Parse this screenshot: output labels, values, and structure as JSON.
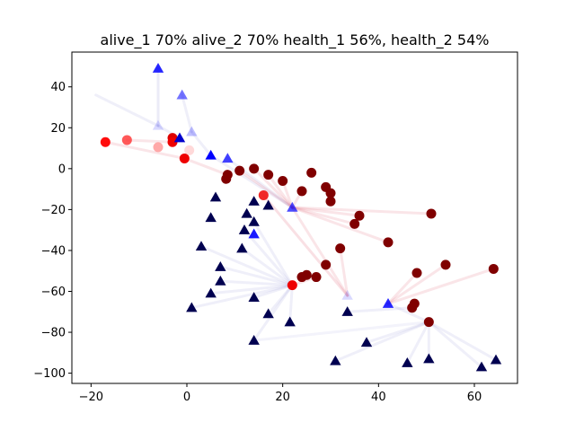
{
  "chart_data": {
    "type": "scatter",
    "title": "alive_1 70% alive_2 70% health_1 56%, health_2 54%",
    "xlabel": "",
    "ylabel": "",
    "xlim": [
      -24,
      69
    ],
    "ylim": [
      -105,
      57
    ],
    "xticks": [
      -20,
      0,
      20,
      40,
      60
    ],
    "yticks": [
      -100,
      -80,
      -60,
      -40,
      -20,
      0,
      20,
      40
    ],
    "grid": false,
    "colors": {
      "team1_alive": "#800000",
      "team1_active": "#ff0000",
      "team2_alive": "#000050",
      "team2_active": "#0000ff",
      "link_team1": "#e06070",
      "link_team2": "#8080d0"
    },
    "series": [
      {
        "marker": "circle",
        "points": [
          {
            "x": 11,
            "y": -1,
            "color": "#800000",
            "alpha": 1
          },
          {
            "x": 14,
            "y": 0,
            "color": "#800000",
            "alpha": 1
          },
          {
            "x": 8.5,
            "y": -3,
            "color": "#800000",
            "alpha": 1
          },
          {
            "x": 8.2,
            "y": -5,
            "color": "#800000",
            "alpha": 1
          },
          {
            "x": 17,
            "y": -3,
            "color": "#800000",
            "alpha": 1
          },
          {
            "x": 20,
            "y": -6,
            "color": "#800000",
            "alpha": 1
          },
          {
            "x": 26,
            "y": -2,
            "color": "#800000",
            "alpha": 1
          },
          {
            "x": 24,
            "y": -11,
            "color": "#800000",
            "alpha": 1
          },
          {
            "x": 29,
            "y": -9,
            "color": "#800000",
            "alpha": 1
          },
          {
            "x": 30,
            "y": -12,
            "color": "#800000",
            "alpha": 1
          },
          {
            "x": 30,
            "y": -16,
            "color": "#800000",
            "alpha": 1
          },
          {
            "x": 36,
            "y": -23,
            "color": "#800000",
            "alpha": 1
          },
          {
            "x": 35,
            "y": -27,
            "color": "#800000",
            "alpha": 1
          },
          {
            "x": 51,
            "y": -22,
            "color": "#800000",
            "alpha": 1
          },
          {
            "x": 42,
            "y": -36,
            "color": "#800000",
            "alpha": 1
          },
          {
            "x": 32,
            "y": -39,
            "color": "#800000",
            "alpha": 1
          },
          {
            "x": 54,
            "y": -47,
            "color": "#800000",
            "alpha": 1
          },
          {
            "x": 29,
            "y": -47,
            "color": "#800000",
            "alpha": 1
          },
          {
            "x": 48,
            "y": -51,
            "color": "#800000",
            "alpha": 1
          },
          {
            "x": 64,
            "y": -49,
            "color": "#800000",
            "alpha": 1
          },
          {
            "x": 27,
            "y": -53,
            "color": "#800000",
            "alpha": 1
          },
          {
            "x": 25,
            "y": -52,
            "color": "#800000",
            "alpha": 1
          },
          {
            "x": 24,
            "y": -53,
            "color": "#800000",
            "alpha": 1
          },
          {
            "x": 47.5,
            "y": -66,
            "color": "#800000",
            "alpha": 1
          },
          {
            "x": 47,
            "y": -68,
            "color": "#800000",
            "alpha": 1
          },
          {
            "x": 50.5,
            "y": -75,
            "color": "#800000",
            "alpha": 1
          },
          {
            "x": 22,
            "y": -57,
            "color": "#ee0000",
            "alpha": 1
          },
          {
            "x": 16,
            "y": -13,
            "color": "#ee1111",
            "alpha": 0.9
          },
          {
            "x": -0.5,
            "y": 5,
            "color": "#ee0000",
            "alpha": 1
          },
          {
            "x": -3,
            "y": 15,
            "color": "#dd0000",
            "alpha": 1
          },
          {
            "x": -3,
            "y": 13,
            "color": "#ee0000",
            "alpha": 1
          },
          {
            "x": -17,
            "y": 13,
            "color": "#ff0000",
            "alpha": 0.95
          },
          {
            "x": -12.5,
            "y": 14,
            "color": "#ff3030",
            "alpha": 0.8
          },
          {
            "x": -6,
            "y": 10.5,
            "color": "#ff6060",
            "alpha": 0.55
          },
          {
            "x": 0.5,
            "y": 9,
            "color": "#ff8080",
            "alpha": 0.3
          }
        ]
      },
      {
        "marker": "triangle",
        "points": [
          {
            "x": -6,
            "y": 49,
            "color": "#0000ff",
            "alpha": 0.85
          },
          {
            "x": -1,
            "y": 36,
            "color": "#0000ff",
            "alpha": 0.55
          },
          {
            "x": -6,
            "y": 21,
            "color": "#0000ff",
            "alpha": 0.15
          },
          {
            "x": 1,
            "y": 18,
            "color": "#0000ff",
            "alpha": 0.25
          },
          {
            "x": -1.5,
            "y": 15,
            "color": "#0000cc",
            "alpha": 1
          },
          {
            "x": 5,
            "y": 6.5,
            "color": "#0000ff",
            "alpha": 1
          },
          {
            "x": 8.5,
            "y": 5,
            "color": "#0000ff",
            "alpha": 0.75
          },
          {
            "x": 22,
            "y": -19,
            "color": "#0000ff",
            "alpha": 0.7
          },
          {
            "x": 14,
            "y": -32,
            "color": "#0000ff",
            "alpha": 0.9
          },
          {
            "x": 33.5,
            "y": -62,
            "color": "#0000ff",
            "alpha": 0.15
          },
          {
            "x": 42,
            "y": -66,
            "color": "#0000ff",
            "alpha": 0.85
          },
          {
            "x": 6,
            "y": -14,
            "color": "#000050",
            "alpha": 1
          },
          {
            "x": 14,
            "y": -16,
            "color": "#000050",
            "alpha": 1
          },
          {
            "x": 17,
            "y": -18,
            "color": "#000050",
            "alpha": 1
          },
          {
            "x": 12.5,
            "y": -22,
            "color": "#000050",
            "alpha": 1
          },
          {
            "x": 5,
            "y": -24,
            "color": "#000050",
            "alpha": 1
          },
          {
            "x": 14,
            "y": -26,
            "color": "#000050",
            "alpha": 1
          },
          {
            "x": 12,
            "y": -30,
            "color": "#000050",
            "alpha": 1
          },
          {
            "x": 3,
            "y": -38,
            "color": "#000050",
            "alpha": 1
          },
          {
            "x": 11.5,
            "y": -39,
            "color": "#000050",
            "alpha": 1
          },
          {
            "x": 7,
            "y": -48,
            "color": "#000050",
            "alpha": 1
          },
          {
            "x": 7,
            "y": -55,
            "color": "#000050",
            "alpha": 1
          },
          {
            "x": 5,
            "y": -61,
            "color": "#000050",
            "alpha": 1
          },
          {
            "x": 14,
            "y": -63,
            "color": "#000050",
            "alpha": 1
          },
          {
            "x": 1,
            "y": -68,
            "color": "#000050",
            "alpha": 1
          },
          {
            "x": 17,
            "y": -71,
            "color": "#000050",
            "alpha": 1
          },
          {
            "x": 21.5,
            "y": -75,
            "color": "#000050",
            "alpha": 1
          },
          {
            "x": 33.5,
            "y": -70,
            "color": "#000050",
            "alpha": 1
          },
          {
            "x": 14,
            "y": -84,
            "color": "#000050",
            "alpha": 1
          },
          {
            "x": 37.5,
            "y": -85,
            "color": "#000050",
            "alpha": 1
          },
          {
            "x": 31,
            "y": -94,
            "color": "#000050",
            "alpha": 1
          },
          {
            "x": 46,
            "y": -95,
            "color": "#000050",
            "alpha": 1
          },
          {
            "x": 50.5,
            "y": -93,
            "color": "#000050",
            "alpha": 1
          },
          {
            "x": 61.5,
            "y": -97,
            "color": "#000050",
            "alpha": 1
          },
          {
            "x": 64.5,
            "y": -93.5,
            "color": "#000050",
            "alpha": 1
          }
        ]
      }
    ],
    "links": [
      {
        "from": [
          -19,
          36
        ],
        "to": [
          -6,
          21
        ],
        "team": 2,
        "alpha": 0.08
      },
      {
        "from": [
          -6,
          49
        ],
        "to": [
          -6,
          21
        ],
        "team": 2,
        "alpha": 0.1
      },
      {
        "from": [
          -6,
          21
        ],
        "to": [
          -1.5,
          15
        ],
        "team": 2,
        "alpha": 0.08
      },
      {
        "from": [
          -1,
          36
        ],
        "to": [
          1,
          18
        ],
        "team": 2,
        "alpha": 0.08
      },
      {
        "from": [
          1,
          18
        ],
        "to": [
          5,
          6.5
        ],
        "team": 2,
        "alpha": 0.08
      },
      {
        "from": [
          5,
          6.5
        ],
        "to": [
          22,
          -19
        ],
        "team": 2,
        "alpha": 0.08
      },
      {
        "from": [
          8.5,
          5
        ],
        "to": [
          22,
          -19
        ],
        "team": 2,
        "alpha": 0.08
      },
      {
        "from": [
          -17,
          13
        ],
        "to": [
          -0.5,
          5
        ],
        "team": 1,
        "alpha": 0.1
      },
      {
        "from": [
          -12.5,
          14
        ],
        "to": [
          -3,
          13
        ],
        "team": 1,
        "alpha": 0.1
      },
      {
        "from": [
          -0.5,
          5
        ],
        "to": [
          8.5,
          -3
        ],
        "team": 1,
        "alpha": 0.1
      },
      {
        "from": [
          11,
          -1
        ],
        "to": [
          22,
          -19
        ],
        "team": 1,
        "alpha": 0.1
      },
      {
        "from": [
          14,
          0
        ],
        "to": [
          22,
          -19
        ],
        "team": 1,
        "alpha": 0.1
      },
      {
        "from": [
          17,
          -3
        ],
        "to": [
          22,
          -19
        ],
        "team": 1,
        "alpha": 0.1
      },
      {
        "from": [
          20,
          -6
        ],
        "to": [
          22,
          -19
        ],
        "team": 1,
        "alpha": 0.1
      },
      {
        "from": [
          24,
          -11
        ],
        "to": [
          22,
          -19
        ],
        "team": 1,
        "alpha": 0.1
      },
      {
        "from": [
          51,
          -22
        ],
        "to": [
          22,
          -19
        ],
        "team": 1,
        "alpha": 0.1
      },
      {
        "from": [
          36,
          -23
        ],
        "to": [
          22,
          -19
        ],
        "team": 1,
        "alpha": 0.1
      },
      {
        "from": [
          35,
          -27
        ],
        "to": [
          22,
          -19
        ],
        "team": 1,
        "alpha": 0.1
      },
      {
        "from": [
          42,
          -36
        ],
        "to": [
          22,
          -19
        ],
        "team": 1,
        "alpha": 0.1
      },
      {
        "from": [
          16,
          -13
        ],
        "to": [
          33.5,
          -62
        ],
        "team": 1,
        "alpha": 0.12
      },
      {
        "from": [
          22,
          -19
        ],
        "to": [
          33.5,
          -62
        ],
        "team": 1,
        "alpha": 0.1
      },
      {
        "from": [
          32,
          -39
        ],
        "to": [
          33.5,
          -62
        ],
        "team": 1,
        "alpha": 0.1
      },
      {
        "from": [
          54,
          -47
        ],
        "to": [
          42,
          -66
        ],
        "team": 1,
        "alpha": 0.1
      },
      {
        "from": [
          64,
          -49
        ],
        "to": [
          42,
          -66
        ],
        "team": 1,
        "alpha": 0.1
      },
      {
        "from": [
          48,
          -51
        ],
        "to": [
          42,
          -66
        ],
        "team": 1,
        "alpha": 0.1
      },
      {
        "from": [
          27,
          -53
        ],
        "to": [
          22,
          -57
        ],
        "team": 1,
        "alpha": 0.1
      },
      {
        "from": [
          12,
          -30
        ],
        "to": [
          22,
          -57
        ],
        "team": 2,
        "alpha": 0.08
      },
      {
        "from": [
          3,
          -38
        ],
        "to": [
          22,
          -57
        ],
        "team": 2,
        "alpha": 0.08
      },
      {
        "from": [
          11.5,
          -39
        ],
        "to": [
          22,
          -57
        ],
        "team": 2,
        "alpha": 0.08
      },
      {
        "from": [
          7,
          -48
        ],
        "to": [
          22,
          -57
        ],
        "team": 2,
        "alpha": 0.08
      },
      {
        "from": [
          7,
          -55
        ],
        "to": [
          22,
          -57
        ],
        "team": 2,
        "alpha": 0.08
      },
      {
        "from": [
          5,
          -61
        ],
        "to": [
          22,
          -57
        ],
        "team": 2,
        "alpha": 0.08
      },
      {
        "from": [
          14,
          -63
        ],
        "to": [
          22,
          -57
        ],
        "team": 2,
        "alpha": 0.08
      },
      {
        "from": [
          1,
          -68
        ],
        "to": [
          22,
          -57
        ],
        "team": 2,
        "alpha": 0.08
      },
      {
        "from": [
          17,
          -71
        ],
        "to": [
          22,
          -57
        ],
        "team": 2,
        "alpha": 0.08
      },
      {
        "from": [
          21.5,
          -75
        ],
        "to": [
          22,
          -57
        ],
        "team": 2,
        "alpha": 0.08
      },
      {
        "from": [
          14,
          -84
        ],
        "to": [
          22,
          -57
        ],
        "team": 2,
        "alpha": 0.08
      },
      {
        "from": [
          14,
          -26
        ],
        "to": [
          22,
          -57
        ],
        "team": 2,
        "alpha": 0.08
      },
      {
        "from": [
          31,
          -94
        ],
        "to": [
          50.5,
          -75
        ],
        "team": 2,
        "alpha": 0.08
      },
      {
        "from": [
          37.5,
          -85
        ],
        "to": [
          50.5,
          -75
        ],
        "team": 2,
        "alpha": 0.08
      },
      {
        "from": [
          46,
          -95
        ],
        "to": [
          50.5,
          -75
        ],
        "team": 2,
        "alpha": 0.08
      },
      {
        "from": [
          50.5,
          -93
        ],
        "to": [
          50.5,
          -75
        ],
        "team": 2,
        "alpha": 0.08
      },
      {
        "from": [
          61.5,
          -97
        ],
        "to": [
          50.5,
          -75
        ],
        "team": 2,
        "alpha": 0.08
      },
      {
        "from": [
          64.5,
          -93.5
        ],
        "to": [
          50.5,
          -75
        ],
        "team": 2,
        "alpha": 0.08
      },
      {
        "from": [
          14,
          -84
        ],
        "to": [
          50.5,
          -75
        ],
        "team": 2,
        "alpha": 0.06
      },
      {
        "from": [
          33.5,
          -70
        ],
        "to": [
          47,
          -68
        ],
        "team": 2,
        "alpha": 0.08
      },
      {
        "from": [
          42,
          -66
        ],
        "to": [
          50.5,
          -75
        ],
        "team": 2,
        "alpha": 0.08
      }
    ]
  }
}
